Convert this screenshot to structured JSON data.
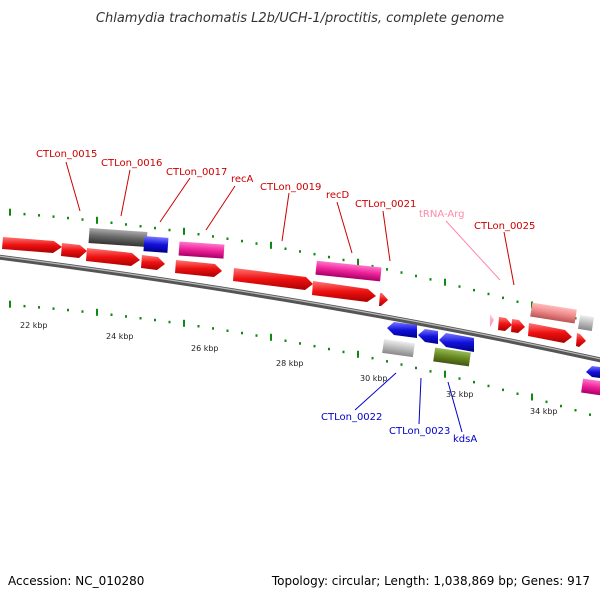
{
  "title": "Chlamydia trachomatis L2b/UCH-1/proctitis, complete genome",
  "accession": "Accession: NC_010280",
  "summary": "Topology: circular; Length: 1,038,869 bp; Genes: 917",
  "colors": {
    "plus_strand": "#ee1111",
    "plus_strand_dark": "#cc0000",
    "minus_strand": "#1111dd",
    "rRNA_pink": "#ee2299",
    "trna": "#ff88aa",
    "gray": "#666666",
    "light_gray": "#bbbbbb",
    "olive": "#668822",
    "salmon": "#ee8888",
    "tick": "#22aa22",
    "tick_dark": "#118811",
    "backbone": "#777777"
  },
  "scale_labels": [
    "22 kbp",
    "24 kbp",
    "26 kbp",
    "28 kbp",
    "30 kbp",
    "32 kbp",
    "34 kbp"
  ],
  "gene_labels_top": [
    "CTLon_0015",
    "CTLon_0016",
    "CTLon_0017",
    "recA",
    "CTLon_0019",
    "recD",
    "CTLon_0021",
    "tRNA-Arg",
    "CTLon_0025"
  ],
  "gene_labels_bottom": [
    "CTLon_0022",
    "CTLon_0023",
    "kdsA"
  ]
}
